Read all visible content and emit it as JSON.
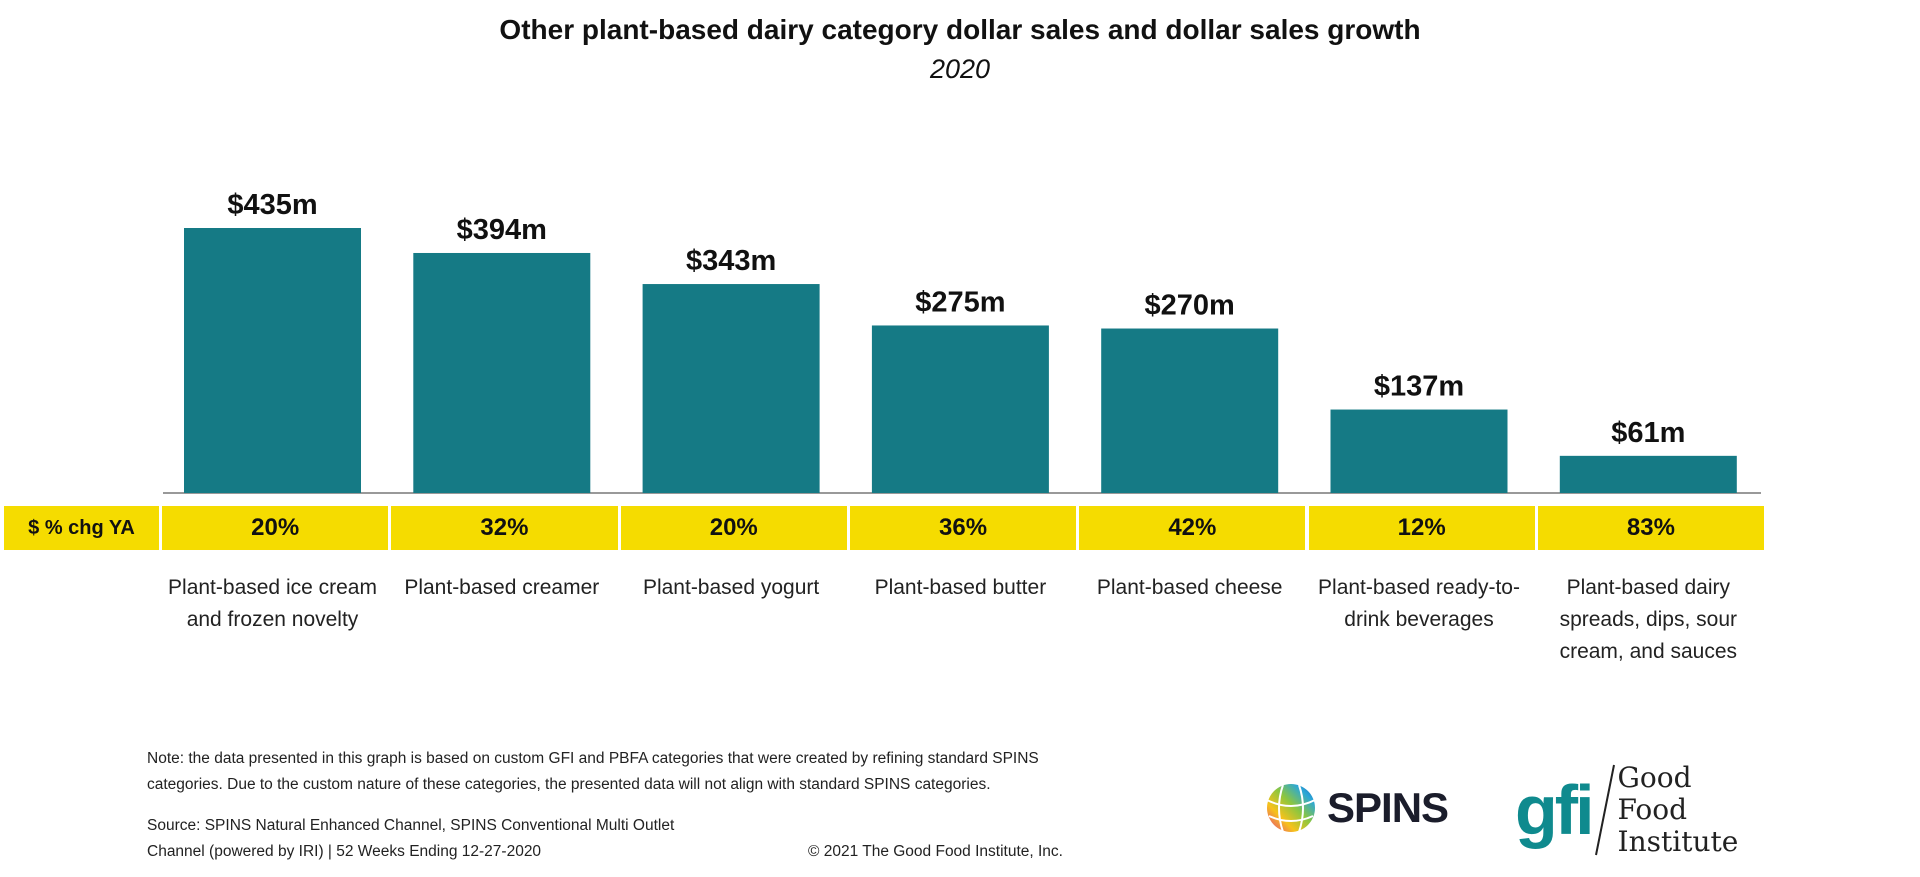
{
  "chart_data": {
    "type": "bar",
    "title": "Other plant-based dairy category dollar sales and dollar sales growth",
    "subtitle": "2020",
    "categories": [
      "Plant-based ice cream and frozen novelty",
      "Plant-based creamer",
      "Plant-based yogurt",
      "Plant-based butter",
      "Plant-based cheese",
      "Plant-based ready-to-drink beverages",
      "Plant-based dairy spreads, dips, sour cream, and sauces"
    ],
    "values": [
      435,
      394,
      343,
      275,
      270,
      137,
      61
    ],
    "data_labels": [
      "$435m",
      "$394m",
      "$343m",
      "$275m",
      "$270m",
      "$137m",
      "$61m"
    ],
    "growth_row_label": "$ % chg YA",
    "growth": [
      "20%",
      "32%",
      "20%",
      "36%",
      "42%",
      "12%",
      "83%"
    ],
    "unit": "$m",
    "ylim": [
      0,
      435
    ],
    "grid": false,
    "colors": {
      "bar": "#157a85",
      "growth_row": "#f5dc00"
    }
  },
  "footer": {
    "note_line1": "Note: the data presented in this graph is based on custom GFI and PBFA categories that were created by refining standard SPINS",
    "note_line2": "categories. Due to the custom nature of these categories, the presented data will not align with standard SPINS categories.",
    "source_line1": "Source: SPINS Natural Enhanced Channel, SPINS Conventional Multi Outlet",
    "source_line2": "Channel (powered by IRI) | 52 Weeks Ending 12-27-2020",
    "copyright": "© 2021 The Good Food Institute, Inc."
  },
  "logos": {
    "spins": "SPINS",
    "gfi_mark": "gfi",
    "gfi_name": "Good Food Institute"
  }
}
